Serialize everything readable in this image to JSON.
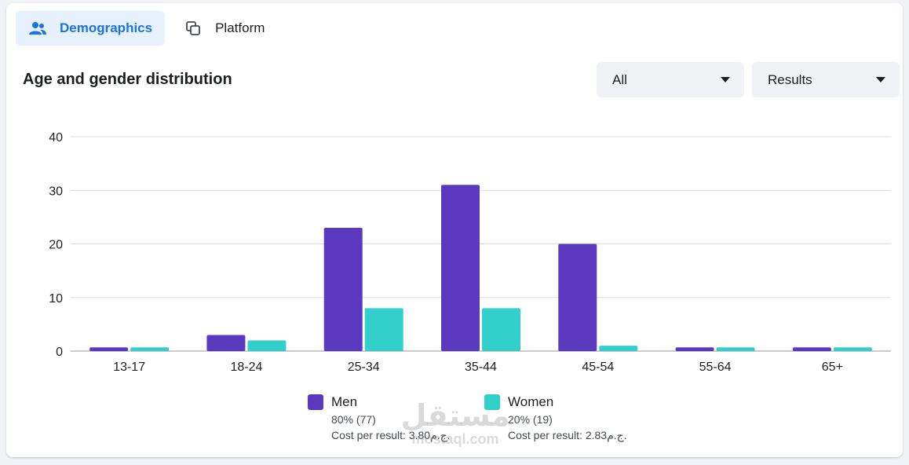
{
  "tabs": [
    {
      "label": "Demographics",
      "icon": "people-icon",
      "active": true
    },
    {
      "label": "Platform",
      "icon": "layers-icon",
      "active": false
    }
  ],
  "filters": {
    "audience": {
      "value": "All"
    },
    "metric": {
      "value": "Results"
    }
  },
  "colors": {
    "men": "#5a39bf",
    "women": "#33cfcc",
    "accent": "#1b74e4"
  },
  "chart_data": {
    "type": "bar",
    "title": "Age and gender distribution",
    "categories": [
      "13-17",
      "18-24",
      "25-34",
      "35-44",
      "45-54",
      "55-64",
      "65+"
    ],
    "series": [
      {
        "name": "Men",
        "values": [
          0.7,
          3,
          23,
          31,
          20,
          0.7,
          0.7
        ]
      },
      {
        "name": "Women",
        "values": [
          0.7,
          2,
          8,
          8,
          1,
          0.7,
          0.7
        ]
      }
    ],
    "yticks": [
      0,
      10,
      20,
      30,
      40
    ],
    "ylim": [
      0,
      40
    ],
    "grid": true,
    "legend_position": "bottom"
  },
  "legend": [
    {
      "name": "Men",
      "share": "80% (77)",
      "cost": "Cost per result: 3.80ج.م."
    },
    {
      "name": "Women",
      "share": "20% (19)",
      "cost": "Cost per result: 2.83ج.م."
    }
  ],
  "watermark": {
    "arabic": "مستقل",
    "latin": "mostaql.com"
  }
}
